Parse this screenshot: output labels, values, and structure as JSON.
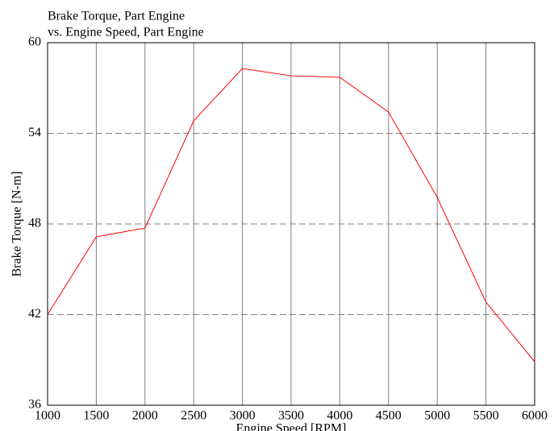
{
  "chart_data": {
    "type": "line",
    "title": "Brake Torque, Part Engine",
    "subtitle": "vs. Engine Speed, Part Engine",
    "x_label": "Engine Speed [RPM]",
    "y_label": "Brake Torque [N-m]",
    "x": [
      1000,
      1500,
      2000,
      2500,
      3000,
      3500,
      4000,
      4500,
      5000,
      5500,
      6000
    ],
    "series": [
      {
        "name": "Brake Torque, Part Engine",
        "color": "#ff0000",
        "values": [
          42.0,
          47.15,
          47.73,
          54.83,
          58.29,
          57.81,
          57.71,
          55.41,
          49.76,
          42.83,
          38.88
        ]
      }
    ],
    "xlim": [
      1000,
      6000
    ],
    "xticks": [
      1000,
      1500,
      2000,
      2500,
      3000,
      3500,
      4000,
      4500,
      5000,
      5500,
      6000
    ],
    "ylim": [
      36,
      60
    ],
    "yticks": [
      36,
      42,
      48,
      54,
      60
    ],
    "grid": true
  }
}
